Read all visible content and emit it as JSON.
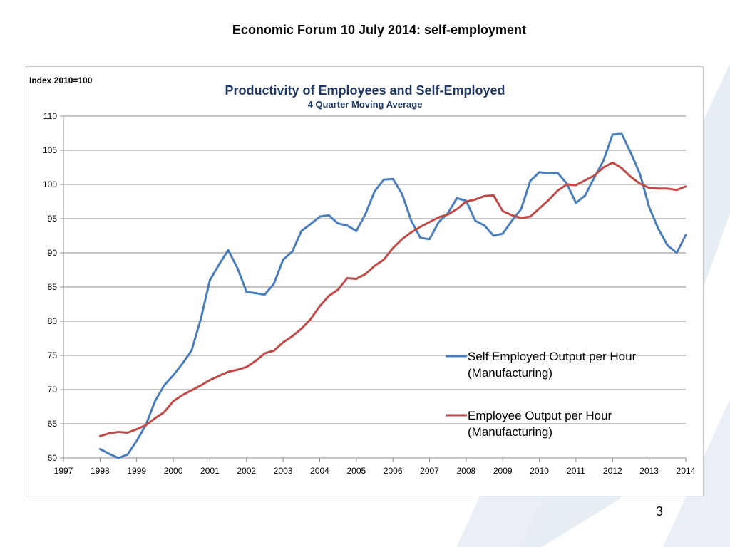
{
  "slide": {
    "title": "Economic Forum 10 July 2014: self-employment",
    "page_number": "3"
  },
  "colors": {
    "title_blue": "#1f3864",
    "self_employed": "#4a7ebb",
    "employee": "#be4b48",
    "grid": "#8c8c8c",
    "decor": "#e4ebf1"
  },
  "chart_data": {
    "type": "line",
    "title": "Productivity of Employees and Self-Employed",
    "subtitle": "4 Quarter Moving Average",
    "ylabel": "Index 2010=100",
    "xlabel": "",
    "ylim": [
      60,
      110
    ],
    "yticks": [
      60,
      65,
      70,
      75,
      80,
      85,
      90,
      95,
      100,
      105,
      110
    ],
    "xlim": [
      1997,
      2014
    ],
    "xticks": [
      1997,
      1998,
      1999,
      2000,
      2001,
      2002,
      2003,
      2004,
      2005,
      2006,
      2007,
      2008,
      2009,
      2010,
      2011,
      2012,
      2013,
      2014
    ],
    "grid": "horizontal",
    "legend": "right",
    "series": [
      {
        "name": "Self Employed Output per Hour (Manufacturing)",
        "x": [
          1998.0,
          1998.25,
          1998.5,
          1998.75,
          1999.0,
          1999.25,
          1999.5,
          1999.75,
          2000.0,
          2000.25,
          2000.5,
          2000.75,
          2001.0,
          2001.25,
          2001.5,
          2001.75,
          2002.0,
          2002.25,
          2002.5,
          2002.75,
          2003.0,
          2003.25,
          2003.5,
          2003.75,
          2004.0,
          2004.25,
          2004.5,
          2004.75,
          2005.0,
          2005.25,
          2005.5,
          2005.75,
          2006.0,
          2006.25,
          2006.5,
          2006.75,
          2007.0,
          2007.25,
          2007.5,
          2007.75,
          2008.0,
          2008.25,
          2008.5,
          2008.75,
          2009.0,
          2009.25,
          2009.5,
          2009.75,
          2010.0,
          2010.25,
          2010.5,
          2010.75,
          2011.0,
          2011.25,
          2011.5,
          2011.75,
          2012.0,
          2012.25,
          2012.5,
          2012.75,
          2013.0,
          2013.25,
          2013.5,
          2013.75,
          2014.0
        ],
        "values": [
          61.3,
          60.6,
          60.0,
          60.5,
          62.5,
          64.8,
          68.3,
          70.6,
          72.1,
          73.8,
          75.7,
          80.3,
          86.0,
          88.3,
          90.4,
          87.8,
          84.3,
          84.1,
          83.9,
          85.5,
          89.0,
          90.2,
          93.2,
          94.2,
          95.3,
          95.5,
          94.3,
          94.0,
          93.2,
          95.7,
          99.0,
          100.7,
          100.8,
          98.6,
          94.7,
          92.2,
          92.0,
          94.5,
          95.8,
          98.0,
          97.6,
          94.7,
          94.0,
          92.5,
          92.8,
          94.7,
          96.4,
          100.5,
          101.8,
          101.6,
          101.7,
          100.1,
          97.3,
          98.4,
          101.0,
          103.5,
          107.3,
          107.4,
          104.6,
          101.5,
          96.7,
          93.5,
          91.1,
          90.0,
          92.6
        ]
      },
      {
        "name": "Employee Output per Hour (Manufacturing)",
        "x": [
          1998.0,
          1998.25,
          1998.5,
          1998.75,
          1999.0,
          1999.25,
          1999.5,
          1999.75,
          2000.0,
          2000.25,
          2000.5,
          2000.75,
          2001.0,
          2001.25,
          2001.5,
          2001.75,
          2002.0,
          2002.25,
          2002.5,
          2002.75,
          2003.0,
          2003.25,
          2003.5,
          2003.75,
          2004.0,
          2004.25,
          2004.5,
          2004.75,
          2005.0,
          2005.25,
          2005.5,
          2005.75,
          2006.0,
          2006.25,
          2006.5,
          2006.75,
          2007.0,
          2007.25,
          2007.5,
          2007.75,
          2008.0,
          2008.25,
          2008.5,
          2008.75,
          2009.0,
          2009.25,
          2009.5,
          2009.75,
          2010.0,
          2010.25,
          2010.5,
          2010.75,
          2011.0,
          2011.25,
          2011.5,
          2011.75,
          2012.0,
          2012.25,
          2012.5,
          2012.75,
          2013.0,
          2013.25,
          2013.5,
          2013.75,
          2014.0
        ],
        "values": [
          63.2,
          63.6,
          63.8,
          63.7,
          64.2,
          64.8,
          65.8,
          66.7,
          68.3,
          69.2,
          69.9,
          70.6,
          71.4,
          72.0,
          72.6,
          72.9,
          73.3,
          74.2,
          75.3,
          75.7,
          76.9,
          77.8,
          78.9,
          80.3,
          82.2,
          83.7,
          84.6,
          86.3,
          86.2,
          86.9,
          88.1,
          89.0,
          90.7,
          92.0,
          93.0,
          93.8,
          94.5,
          95.2,
          95.6,
          96.4,
          97.5,
          97.8,
          98.3,
          98.4,
          96.1,
          95.5,
          95.1,
          95.3,
          96.5,
          97.7,
          99.1,
          100.0,
          99.9,
          100.6,
          101.3,
          102.5,
          103.2,
          102.4,
          101.1,
          100.1,
          99.5,
          99.4,
          99.4,
          99.2,
          99.7
        ]
      }
    ]
  }
}
